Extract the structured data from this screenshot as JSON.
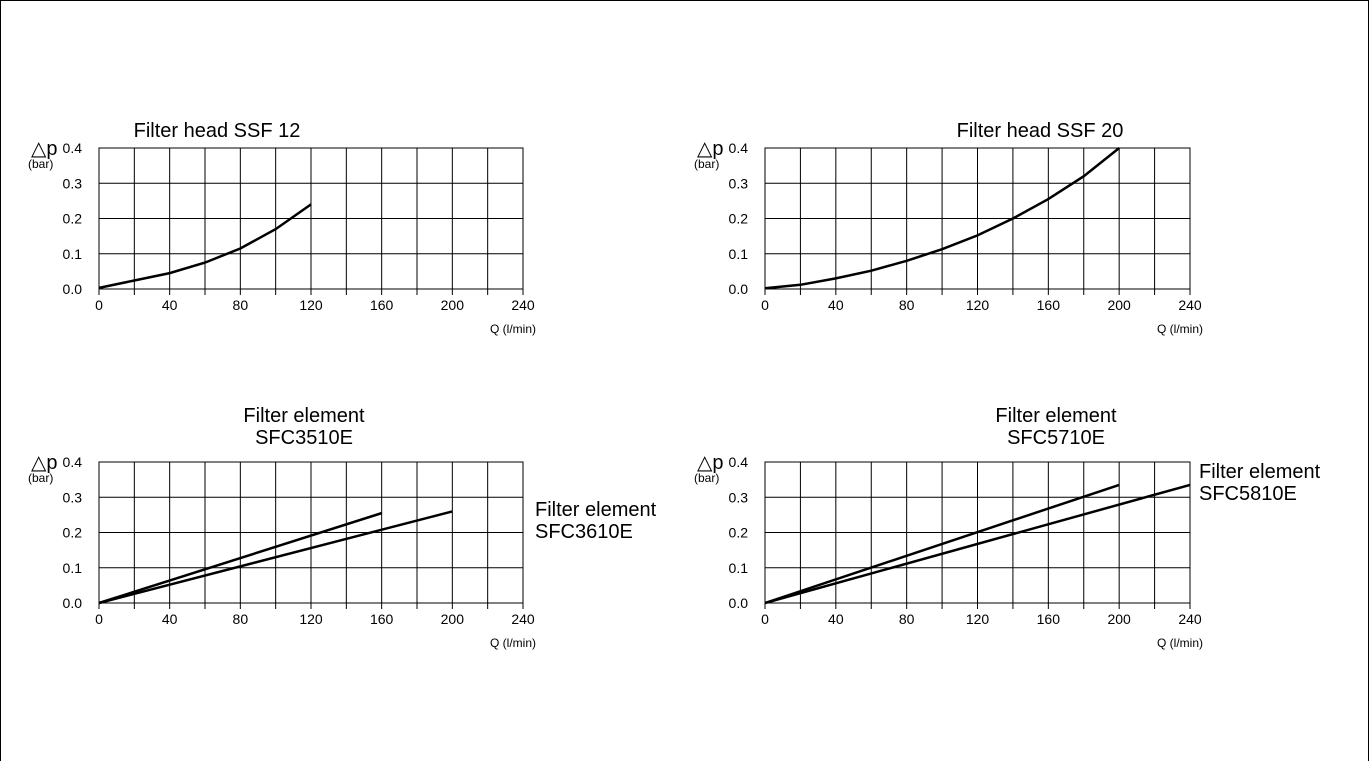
{
  "chart_data": [
    {
      "type": "line",
      "title": "Filter head SSF 12",
      "ylabel": "△p",
      "yunit": "(bar)",
      "xlabel": "Q (l/min)",
      "xlim": [
        0,
        240
      ],
      "ylim": [
        0,
        0.4
      ],
      "xticks": [
        "0",
        "40",
        "80",
        "120",
        "160",
        "200",
        "240"
      ],
      "yticks": [
        "0.0",
        "0.1",
        "0.2",
        "0.3",
        "0.4"
      ],
      "grid": true,
      "side_label": [],
      "series": [
        {
          "x": [
            0,
            20,
            40,
            60,
            80,
            100,
            120
          ],
          "y": [
            0.003,
            0.024,
            0.045,
            0.075,
            0.115,
            0.17,
            0.24
          ]
        }
      ]
    },
    {
      "type": "line",
      "title": "Filter head SSF 20",
      "ylabel": "△p",
      "yunit": "(bar)",
      "xlabel": "Q (l/min)",
      "xlim": [
        0,
        240
      ],
      "ylim": [
        0,
        0.4
      ],
      "xticks": [
        "0",
        "40",
        "80",
        "120",
        "160",
        "200",
        "240"
      ],
      "yticks": [
        "0.0",
        "0.1",
        "0.2",
        "0.3",
        "0.4"
      ],
      "grid": true,
      "side_label": [],
      "series": [
        {
          "x": [
            0,
            20,
            40,
            60,
            80,
            100,
            120,
            140,
            160,
            180,
            200
          ],
          "y": [
            0.002,
            0.012,
            0.03,
            0.052,
            0.08,
            0.113,
            0.152,
            0.2,
            0.255,
            0.32,
            0.4
          ]
        }
      ]
    },
    {
      "type": "line",
      "title": [
        "Filter element",
        "SFC3510E"
      ],
      "ylabel": "△p",
      "yunit": "(bar)",
      "xlabel": "Q (l/min)",
      "xlim": [
        0,
        240
      ],
      "ylim": [
        0,
        0.4
      ],
      "xticks": [
        "0",
        "40",
        "80",
        "120",
        "160",
        "200",
        "240"
      ],
      "yticks": [
        "0.0",
        "0.1",
        "0.2",
        "0.3",
        "0.4"
      ],
      "grid": true,
      "side_label": [
        "Filter element",
        "SFC3610E"
      ],
      "series": [
        {
          "x": [
            0,
            160
          ],
          "y": [
            0,
            0.255
          ]
        },
        {
          "x": [
            0,
            200
          ],
          "y": [
            0,
            0.26
          ]
        }
      ]
    },
    {
      "type": "line",
      "title": [
        "Filter element",
        "SFC5710E"
      ],
      "ylabel": "△p",
      "yunit": "(bar)",
      "xlabel": "Q (l/min)",
      "xlim": [
        0,
        240
      ],
      "ylim": [
        0,
        0.4
      ],
      "xticks": [
        "0",
        "40",
        "80",
        "120",
        "160",
        "200",
        "240"
      ],
      "yticks": [
        "0.0",
        "0.1",
        "0.2",
        "0.3",
        "0.4"
      ],
      "grid": true,
      "side_label": [
        "Filter element",
        "SFC5810E"
      ],
      "series": [
        {
          "x": [
            0,
            200
          ],
          "y": [
            0,
            0.335
          ]
        },
        {
          "x": [
            0,
            240
          ],
          "y": [
            0,
            0.335
          ]
        }
      ]
    }
  ]
}
